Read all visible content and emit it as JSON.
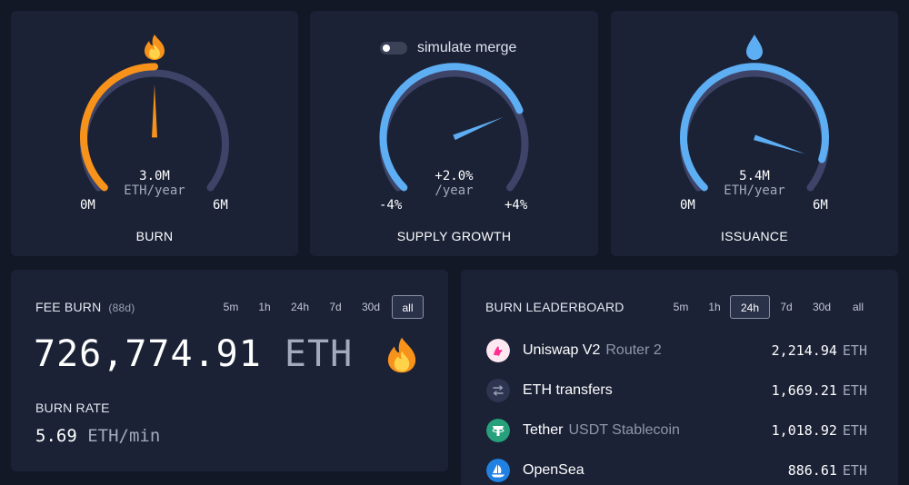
{
  "burn_gauge": {
    "value": "3.0M",
    "unit": "ETH/year",
    "min": "0M",
    "max": "6M",
    "title": "BURN",
    "icon": "fire-icon",
    "fraction": 0.5,
    "color": "#f7931a"
  },
  "supply_gauge": {
    "toggle_label": "simulate merge",
    "toggle_on": false,
    "value": "+2.0%",
    "unit": "/year",
    "min": "-4%",
    "max": "+4%",
    "title": "SUPPLY GROWTH",
    "fraction": 0.75,
    "color": "#5daef3"
  },
  "issuance_gauge": {
    "value": "5.4M",
    "unit": "ETH/year",
    "min": "0M",
    "max": "6M",
    "title": "ISSUANCE",
    "icon": "droplet-icon",
    "fraction": 0.9,
    "color": "#5daef3"
  },
  "fee_burn": {
    "title": "FEE BURN",
    "subtitle": "(88d)",
    "timeframes": [
      "5m",
      "1h",
      "24h",
      "7d",
      "30d",
      "all"
    ],
    "active_timeframe": "all",
    "amount": "726,774.91",
    "amount_unit": "ETH",
    "icon": "fire-icon",
    "burn_rate_label": "BURN RATE",
    "burn_rate_value": "5.69",
    "burn_rate_unit": "ETH/min"
  },
  "leaderboard": {
    "title": "BURN LEADERBOARD",
    "timeframes": [
      "5m",
      "1h",
      "24h",
      "7d",
      "30d",
      "all"
    ],
    "active_timeframe": "24h",
    "rows": [
      {
        "name": "Uniswap V2",
        "detail": "Router 2",
        "value": "2,214.94",
        "unit": "ETH",
        "icon": "uniswap-icon"
      },
      {
        "name": "ETH transfers",
        "detail": "",
        "value": "1,669.21",
        "unit": "ETH",
        "icon": "transfer-arrows-icon"
      },
      {
        "name": "Tether",
        "detail": "USDT Stablecoin",
        "value": "1,018.92",
        "unit": "ETH",
        "icon": "tether-icon"
      },
      {
        "name": "OpenSea",
        "detail": "",
        "value": "886.61",
        "unit": "ETH",
        "icon": "opensea-icon"
      }
    ]
  }
}
